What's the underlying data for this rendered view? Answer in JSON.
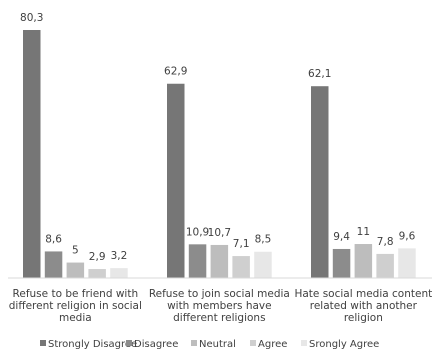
{
  "chart_data": {
    "type": "bar",
    "categories": [
      [
        "Refuse to be friend with",
        "different religion in social",
        "media"
      ],
      [
        "Refuse to join social media",
        "with members have",
        "different religions"
      ],
      [
        "Hate social media content",
        "related with another",
        "religion"
      ]
    ],
    "series": [
      {
        "name": "Strongly Disagree",
        "values": [
          80.3,
          62.9,
          62.1
        ],
        "labels": [
          "80,3",
          "62,9",
          "62,1"
        ],
        "color": "#767676"
      },
      {
        "name": "Disagree",
        "values": [
          8.6,
          10.9,
          9.4
        ],
        "labels": [
          "8,6",
          "10,9",
          "9,4"
        ],
        "color": "#8c8c8c"
      },
      {
        "name": "Neutral",
        "values": [
          5,
          10.7,
          11
        ],
        "labels": [
          "5",
          "10,7",
          "11"
        ],
        "color": "#bdbdbd"
      },
      {
        "name": "Agree",
        "values": [
          2.9,
          7.1,
          7.8
        ],
        "labels": [
          "2,9",
          "7,1",
          "7,8"
        ],
        "color": "#cfcfcf"
      },
      {
        "name": "Srongly Agree",
        "values": [
          3.2,
          8.5,
          9.6
        ],
        "labels": [
          "3,2",
          "8,5",
          "9,6"
        ],
        "color": "#e7e7e7"
      }
    ],
    "ylim": [
      0,
      80.3
    ],
    "grid": false,
    "legend_position": "bottom"
  }
}
